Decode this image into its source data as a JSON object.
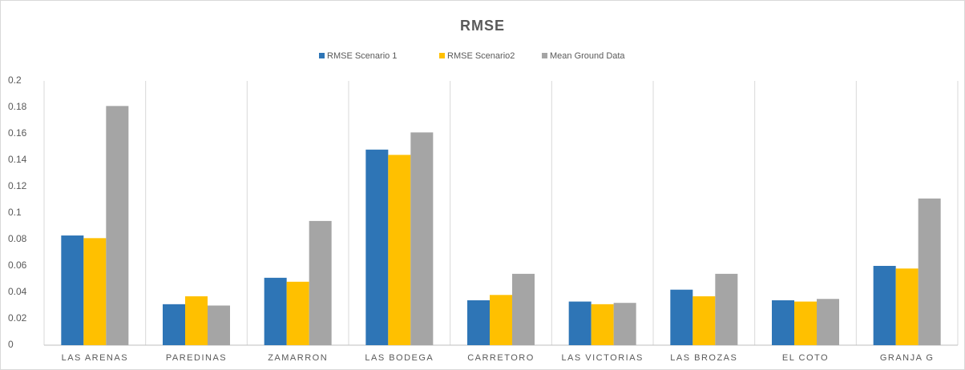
{
  "chart_data": {
    "type": "bar",
    "title": "RMSE",
    "categories": [
      "LAS ARENAS",
      "PAREDINAS",
      "ZAMARRON",
      "LAS BODEGA",
      "CARRETORO",
      "LAS VICTORIAS",
      "LAS BROZAS",
      "EL COTO",
      "GRANJA G"
    ],
    "series": [
      {
        "name": "RMSE Scenario 1",
        "color": "#2e75b6",
        "values": [
          0.083,
          0.031,
          0.051,
          0.148,
          0.034,
          0.033,
          0.042,
          0.034,
          0.06
        ]
      },
      {
        "name": "RMSE Scenario2",
        "color": "#ffc000",
        "values": [
          0.081,
          0.037,
          0.048,
          0.144,
          0.038,
          0.031,
          0.037,
          0.033,
          0.058
        ]
      },
      {
        "name": "Mean Ground Data",
        "color": "#a5a5a5",
        "values": [
          0.181,
          0.03,
          0.094,
          0.161,
          0.054,
          0.032,
          0.054,
          0.035,
          0.111
        ]
      }
    ],
    "ylim": [
      0,
      0.2
    ],
    "yticks": [
      0,
      0.02,
      0.04,
      0.06,
      0.08,
      0.1,
      0.12,
      0.14,
      0.16,
      0.18,
      0.2
    ],
    "legend": "top"
  }
}
